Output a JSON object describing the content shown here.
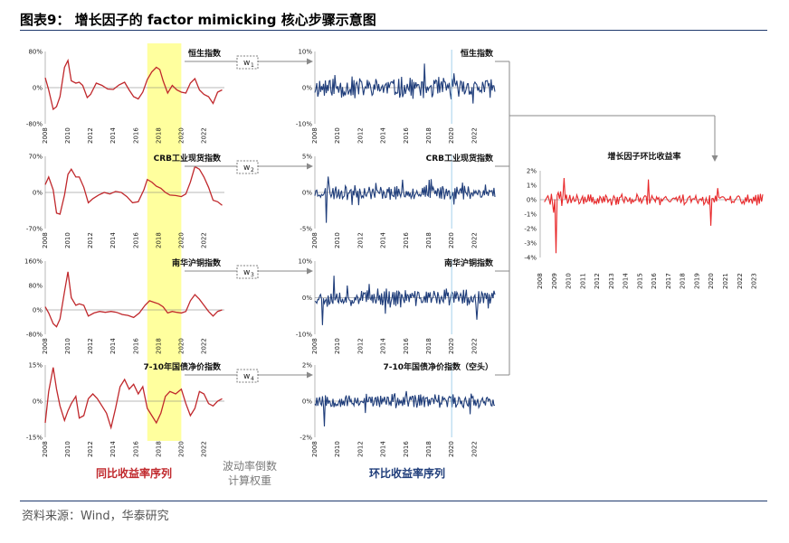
{
  "figure": {
    "title": "图表9：  增长因子的 factor mimicking 核心步骤示意图",
    "source": "资料来源：Wind，华泰研究",
    "captions": {
      "left": "同比收益率序列",
      "middle": "波动率倒数计算权重",
      "right": "环比收益率序列"
    },
    "colors": {
      "red": "#c0282c",
      "blue": "#1f3d7a",
      "bright_red": "#e8282a",
      "highlight": "#ffff9e",
      "arrow": "#8a8a8a"
    }
  },
  "chart_data": {
    "type": "line",
    "highlight_window": [
      2017,
      2020
    ],
    "years": [
      "2008",
      "2010",
      "2012",
      "2014",
      "2016",
      "2018",
      "2020",
      "2022"
    ],
    "right_years": [
      "2008",
      "2009",
      "2010",
      "2011",
      "2012",
      "2013",
      "2014",
      "2015",
      "2016",
      "2017",
      "2018",
      "2019",
      "2020",
      "2021",
      "2022",
      "2023"
    ],
    "yoy_panels": [
      {
        "label": "恒生指数",
        "ylim": [
          -80,
          80
        ],
        "ticks": [
          "80%",
          "0%",
          "-80%"
        ],
        "x": [
          2008.0,
          2008.3,
          2008.7,
          2009.0,
          2009.3,
          2009.7,
          2010.0,
          2010.3,
          2010.7,
          2011.0,
          2011.3,
          2011.7,
          2012.0,
          2012.5,
          2013.0,
          2013.5,
          2014.0,
          2014.5,
          2015.0,
          2015.4,
          2015.8,
          2016.2,
          2016.6,
          2017.0,
          2017.4,
          2017.8,
          2018.1,
          2018.4,
          2018.8,
          2019.2,
          2019.6,
          2020.0,
          2020.4,
          2020.8,
          2021.2,
          2021.6,
          2022.0,
          2022.4,
          2022.8,
          2023.2,
          2023.6
        ],
        "y": [
          22,
          -5,
          -48,
          -42,
          -20,
          45,
          60,
          15,
          10,
          12,
          5,
          -22,
          -15,
          10,
          5,
          -3,
          -4,
          6,
          12,
          -5,
          -20,
          -25,
          -10,
          18,
          35,
          45,
          40,
          15,
          -12,
          5,
          -5,
          -10,
          -12,
          10,
          20,
          -5,
          -15,
          -20,
          -35,
          -10,
          -5
        ]
      },
      {
        "label": "CRB工业现货指数",
        "ylim": [
          -70,
          70
        ],
        "ticks": [
          "70%",
          "0%",
          "-70%"
        ],
        "x": [
          2008.0,
          2008.3,
          2008.7,
          2009.0,
          2009.3,
          2009.7,
          2010.0,
          2010.3,
          2010.7,
          2011.0,
          2011.4,
          2011.8,
          2012.2,
          2012.7,
          2013.2,
          2013.7,
          2014.2,
          2014.7,
          2015.2,
          2015.7,
          2016.2,
          2016.7,
          2017.0,
          2017.4,
          2017.8,
          2018.2,
          2018.6,
          2019.0,
          2019.5,
          2020.0,
          2020.4,
          2020.8,
          2021.2,
          2021.6,
          2022.0,
          2022.4,
          2022.8,
          2023.2,
          2023.6
        ],
        "y": [
          15,
          30,
          5,
          -40,
          -42,
          -5,
          35,
          45,
          30,
          30,
          10,
          -20,
          -12,
          -5,
          0,
          -3,
          2,
          0,
          -8,
          -20,
          -18,
          5,
          25,
          20,
          12,
          8,
          0,
          -5,
          -6,
          -8,
          -3,
          20,
          50,
          45,
          30,
          10,
          -15,
          -18,
          -25
        ]
      },
      {
        "label": "南华沪铜指数",
        "ylim": [
          -80,
          160
        ],
        "ticks": [
          "160%",
          "80%",
          "0%",
          "-80%"
        ],
        "x": [
          2008.0,
          2008.3,
          2008.7,
          2009.0,
          2009.3,
          2009.7,
          2010.0,
          2010.3,
          2010.7,
          2011.0,
          2011.4,
          2011.8,
          2012.3,
          2012.8,
          2013.3,
          2013.8,
          2014.3,
          2014.8,
          2015.3,
          2015.8,
          2016.3,
          2016.8,
          2017.2,
          2017.6,
          2018.0,
          2018.4,
          2018.8,
          2019.2,
          2019.6,
          2020.0,
          2020.4,
          2020.8,
          2021.2,
          2021.6,
          2022.0,
          2022.4,
          2022.8,
          2023.2,
          2023.6
        ],
        "y": [
          10,
          -10,
          -45,
          -55,
          -30,
          60,
          125,
          40,
          15,
          20,
          15,
          -20,
          -10,
          -5,
          -8,
          -5,
          -8,
          -15,
          -18,
          -25,
          -10,
          15,
          30,
          25,
          20,
          10,
          -10,
          -5,
          -8,
          -10,
          -5,
          30,
          50,
          35,
          15,
          -5,
          -20,
          -5,
          0
        ]
      },
      {
        "label": "7-10年国债净价指数",
        "ylim": [
          -15,
          15
        ],
        "ticks": [
          "15%",
          "0%",
          "-15%"
        ],
        "x": [
          2008.0,
          2008.3,
          2008.7,
          2009.0,
          2009.3,
          2009.7,
          2010.0,
          2010.3,
          2010.7,
          2011.0,
          2011.4,
          2011.8,
          2012.2,
          2012.6,
          2013.0,
          2013.4,
          2013.8,
          2014.2,
          2014.6,
          2015.0,
          2015.4,
          2015.8,
          2016.2,
          2016.6,
          2017.0,
          2017.4,
          2017.8,
          2018.2,
          2018.6,
          2019.0,
          2019.5,
          2020.0,
          2020.4,
          2020.8,
          2021.2,
          2021.6,
          2022.0,
          2022.4,
          2022.8,
          2023.2,
          2023.6
        ],
        "y": [
          -9,
          4,
          14,
          5,
          -2,
          -8,
          -4,
          -1,
          2,
          -7,
          -6,
          1,
          3,
          1,
          -2,
          -5,
          -11,
          -3,
          6,
          9,
          5,
          7,
          3,
          6,
          -3,
          -6,
          -9,
          -5,
          2,
          4,
          3,
          5,
          -1,
          -6,
          -3,
          4,
          3,
          -1,
          -2,
          0,
          1
        ]
      }
    ],
    "mom_panels": [
      {
        "label": "恒生指数",
        "ylim": [
          -10,
          10
        ],
        "ticks": [
          "10%",
          "0%",
          "-10%"
        ],
        "amp": 3.5,
        "seed": 11
      },
      {
        "label": "CRB工业现货指数",
        "ylim": [
          -5,
          5
        ],
        "ticks": [
          "5%",
          "0%",
          "-5%"
        ],
        "amp": 1.2,
        "seed": 23
      },
      {
        "label": "南华沪铜指数",
        "ylim": [
          -10,
          10
        ],
        "ticks": [
          "10%",
          "0%",
          "-10%"
        ],
        "amp": 2.6,
        "seed": 37
      },
      {
        "label": "7-10年国债净价指数（空头）",
        "ylim": [
          -2,
          2
        ],
        "ticks": [
          "2%",
          "0%",
          "-2%"
        ],
        "amp": 0.45,
        "seed": 53
      }
    ],
    "weights": [
      "w1",
      "w2",
      "w3",
      "w4"
    ],
    "result": {
      "label": "增长因子环比收益率",
      "ylim": [
        -4,
        2
      ],
      "ticks": [
        "2%",
        "1%",
        "0%",
        "-1%",
        "-2%",
        "-3%",
        "-4%"
      ],
      "amp": 0.45,
      "seed": 71
    }
  }
}
